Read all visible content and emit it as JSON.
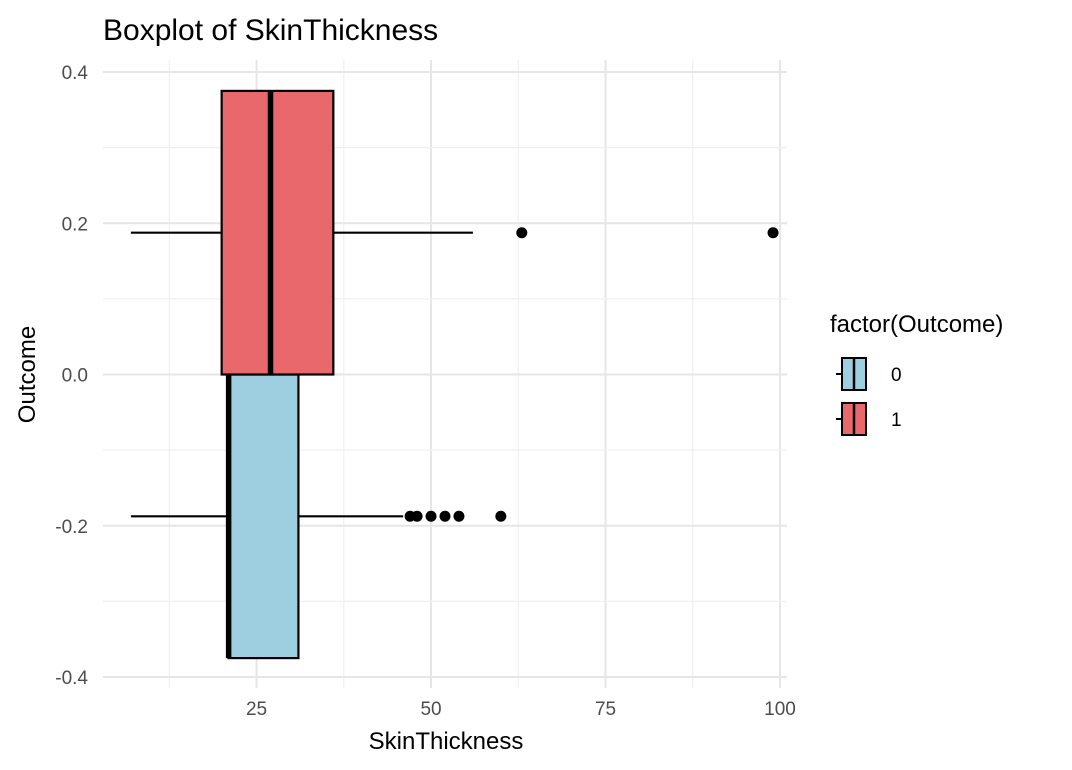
{
  "chart_data": {
    "type": "boxplot",
    "title": "Boxplot of SkinThickness",
    "xlabel": "SkinThickness",
    "ylabel": "Outcome",
    "xlim": [
      3,
      101
    ],
    "ylim": [
      -0.4,
      0.4
    ],
    "x_ticks": [
      25,
      50,
      75,
      100
    ],
    "y_ticks": [
      -0.4,
      -0.2,
      0.0,
      0.2,
      0.4
    ],
    "y_tick_labels": [
      "-0.4",
      "-0.2",
      "0.0",
      "0.2",
      "0.4"
    ],
    "grid": true,
    "legend": {
      "title": "factor(Outcome)",
      "position": "right",
      "entries": [
        {
          "label": "0",
          "color": "#9ecfe0"
        },
        {
          "label": "1",
          "color": "#e8686c"
        }
      ]
    },
    "series": [
      {
        "outcome": "0",
        "color": "#9ecfe0",
        "y_center": -0.1875,
        "y_range": [
          -0.375,
          0.0
        ],
        "whisker_low": 7,
        "q1": 21,
        "median": 21,
        "q3": 31,
        "whisker_high": 46,
        "outliers": [
          47,
          48,
          50,
          52,
          54,
          60
        ]
      },
      {
        "outcome": "1",
        "color": "#e8686c",
        "y_center": 0.1875,
        "y_range": [
          0.0,
          0.375
        ],
        "whisker_low": 7,
        "q1": 20,
        "median": 27,
        "q3": 36,
        "whisker_high": 56,
        "outliers": [
          63,
          99
        ]
      }
    ]
  }
}
